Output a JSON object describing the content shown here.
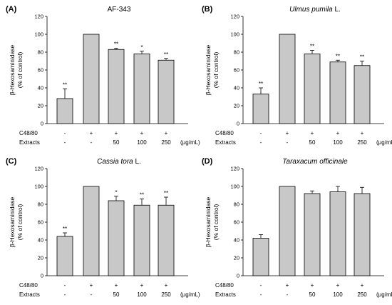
{
  "charts": [
    {
      "panel_label": "(A)",
      "title_parts": [
        {
          "text": "AF-343",
          "italic": false
        }
      ],
      "ylabel_line1": "β-Hexosaminidase",
      "ylabel_line2": "(% of control)",
      "yticks": [
        "0",
        "20",
        "40",
        "60",
        "80",
        "100",
        "120"
      ],
      "row1_label": "C48/80",
      "row1": [
        "-",
        "+",
        "+",
        "+",
        "+"
      ],
      "row2_label": "Extracts",
      "row2": [
        "-",
        "-",
        "50",
        "100",
        "250"
      ],
      "unit": "(μg/mL)",
      "significance": [
        "**",
        "",
        "**",
        "*",
        "**"
      ]
    },
    {
      "panel_label": "(B)",
      "title_parts": [
        {
          "text": "Ulmus pumila",
          "italic": true
        },
        {
          "text": " L.",
          "italic": false
        }
      ],
      "ylabel_line1": "β-Hexosaminidase",
      "ylabel_line2": "(% of control)",
      "yticks": [
        "0",
        "20",
        "40",
        "60",
        "80",
        "100",
        "120"
      ],
      "row1_label": "C48/80",
      "row1": [
        "-",
        "+",
        "+",
        "+",
        "+"
      ],
      "row2_label": "Extracts",
      "row2": [
        "-",
        "-",
        "50",
        "100",
        "250"
      ],
      "unit": "(μg/mL)",
      "significance": [
        "**",
        "",
        "**",
        "**",
        "**"
      ]
    },
    {
      "panel_label": "(C)",
      "title_parts": [
        {
          "text": "Cassia tora",
          "italic": true
        },
        {
          "text": " L.",
          "italic": false
        }
      ],
      "ylabel_line1": "β-Hexosaminidase",
      "ylabel_line2": "(% of control)",
      "yticks": [
        "0",
        "20",
        "40",
        "60",
        "80",
        "100",
        "120"
      ],
      "row1_label": "C48/80",
      "row1": [
        "-",
        "+",
        "+",
        "+",
        "+"
      ],
      "row2_label": "Extracts",
      "row2": [
        "-",
        "-",
        "50",
        "100",
        "250"
      ],
      "unit": "(μg/mL)",
      "significance": [
        "**",
        "",
        "*",
        "**",
        "**"
      ]
    },
    {
      "panel_label": "(D)",
      "title_parts": [
        {
          "text": "Taraxacum officinale",
          "italic": true
        }
      ],
      "ylabel_line1": "β-Hexosaminidase",
      "ylabel_line2": "(% of control)",
      "yticks": [
        "0",
        "20",
        "40",
        "60",
        "80",
        "100",
        "120"
      ],
      "row1_label": "C48/80",
      "row1": [
        "-",
        "+",
        "+",
        "+",
        "+"
      ],
      "row2_label": "Extracts",
      "row2": [
        "-",
        "-",
        "50",
        "100",
        "250"
      ],
      "unit": "(μg/mL)",
      "significance": [
        "",
        "",
        "",
        "",
        ""
      ]
    }
  ],
  "chart_data": [
    {
      "type": "bar",
      "title": "AF-343",
      "ylabel": "β-Hexosaminidase (% of control)",
      "categories": [
        "-/-",
        "+/-",
        "+/50",
        "+/100",
        "+/250"
      ],
      "values": [
        28,
        100,
        83,
        78,
        71
      ],
      "errors": [
        11,
        0,
        1.5,
        3,
        2
      ],
      "ylim": [
        0,
        120
      ],
      "bar_color": "#c8c8c8",
      "grid": false
    },
    {
      "type": "bar",
      "title": "Ulmus pumila L.",
      "ylabel": "β-Hexosaminidase (% of control)",
      "categories": [
        "-/-",
        "+/-",
        "+/50",
        "+/100",
        "+/250"
      ],
      "values": [
        33,
        100,
        78,
        69,
        65
      ],
      "errors": [
        7,
        0,
        4,
        2,
        5
      ],
      "ylim": [
        0,
        120
      ],
      "bar_color": "#c8c8c8",
      "grid": false
    },
    {
      "type": "bar",
      "title": "Cassia tora L.",
      "ylabel": "β-Hexosaminidase (% of control)",
      "categories": [
        "-/-",
        "+/-",
        "+/50",
        "+/100",
        "+/250"
      ],
      "values": [
        44,
        100,
        84,
        79,
        79
      ],
      "errors": [
        4,
        0,
        5,
        7,
        9
      ],
      "ylim": [
        0,
        120
      ],
      "bar_color": "#c8c8c8",
      "grid": false
    },
    {
      "type": "bar",
      "title": "Taraxacum officinale",
      "ylabel": "β-Hexosaminidase (% of control)",
      "categories": [
        "-/-",
        "+/-",
        "+/50",
        "+/100",
        "+/250"
      ],
      "values": [
        42,
        100,
        92,
        94,
        92
      ],
      "errors": [
        4,
        0,
        3,
        6,
        7
      ],
      "ylim": [
        0,
        120
      ],
      "bar_color": "#c8c8c8",
      "grid": false
    }
  ]
}
